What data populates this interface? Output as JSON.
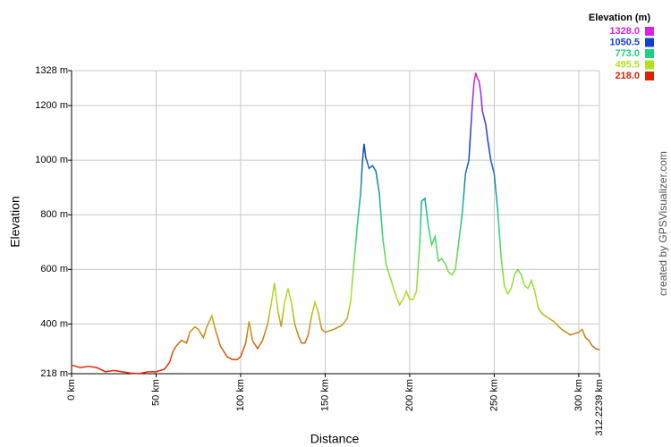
{
  "chart_data": {
    "type": "line",
    "x_label": "Distance",
    "y_label": "Elevation",
    "legend_title": "Elevation (m)",
    "credit": "created by GPSVisualizer.com",
    "color_scale": [
      {
        "value": 1328,
        "label": "1328.0",
        "color": "#dd22dd"
      },
      {
        "value": 1050.5,
        "label": "1050.5",
        "color": "#1040d0"
      },
      {
        "value": 773,
        "label": "773.0",
        "color": "#20d080"
      },
      {
        "value": 495.5,
        "label": "495.5",
        "color": "#b0e020"
      },
      {
        "value": 218,
        "label": "218.0",
        "color": "#e02000"
      }
    ],
    "xlim": [
      0,
      312.2239
    ],
    "ylim": [
      218,
      1328
    ],
    "xticks": [
      {
        "value": 0,
        "label": "0 km"
      },
      {
        "value": 50,
        "label": "50 km"
      },
      {
        "value": 100,
        "label": "100 km"
      },
      {
        "value": 150,
        "label": "150 km"
      },
      {
        "value": 200,
        "label": "200 km"
      },
      {
        "value": 250,
        "label": "250 km"
      },
      {
        "value": 300,
        "label": "300 km"
      },
      {
        "value": 312.2239,
        "label": "312.2239 km"
      }
    ],
    "yticks": [
      {
        "value": 218,
        "label": "218 m"
      },
      {
        "value": 400,
        "label": "400 m"
      },
      {
        "value": 600,
        "label": "600 m"
      },
      {
        "value": 800,
        "label": "800 m"
      },
      {
        "value": 1000,
        "label": "1000 m"
      },
      {
        "value": 1200,
        "label": "1200 m"
      },
      {
        "value": 1328,
        "label": "1328 m"
      }
    ],
    "grid": true,
    "x": [
      0,
      5,
      10,
      15,
      20,
      25,
      30,
      35,
      40,
      45,
      50,
      55,
      58,
      60,
      62,
      65,
      68,
      70,
      73,
      75,
      78,
      80,
      83,
      85,
      88,
      90,
      92,
      95,
      98,
      100,
      103,
      105,
      107,
      110,
      113,
      116,
      118,
      120,
      122,
      124,
      126,
      128,
      130,
      132,
      134,
      136,
      138,
      140,
      142,
      144,
      146,
      148,
      150,
      155,
      160,
      163,
      165,
      167,
      169,
      171,
      172,
      173,
      174,
      176,
      178,
      180,
      182,
      184,
      186,
      188,
      190,
      192,
      194,
      196,
      198,
      200,
      202,
      204,
      206,
      207,
      209,
      211,
      213,
      215,
      217,
      219,
      221,
      223,
      225,
      227,
      229,
      231,
      233,
      235,
      236,
      237,
      238,
      239,
      240,
      241,
      242,
      243,
      245,
      246,
      248,
      250,
      252,
      254,
      256,
      258,
      260,
      262,
      264,
      266,
      268,
      270,
      272,
      274,
      276,
      278,
      280,
      285,
      290,
      295,
      300,
      302,
      304,
      306,
      308,
      310,
      312.2239
    ],
    "values": [
      250,
      240,
      245,
      240,
      225,
      230,
      225,
      220,
      218,
      225,
      225,
      235,
      260,
      300,
      320,
      340,
      330,
      370,
      390,
      380,
      350,
      390,
      430,
      380,
      320,
      300,
      280,
      270,
      270,
      280,
      330,
      410,
      340,
      310,
      340,
      400,
      470,
      550,
      450,
      390,
      480,
      530,
      480,
      400,
      360,
      330,
      330,
      360,
      430,
      480,
      440,
      380,
      370,
      380,
      395,
      420,
      480,
      620,
      760,
      880,
      990,
      1060,
      1010,
      970,
      980,
      960,
      880,
      720,
      620,
      580,
      540,
      500,
      470,
      490,
      520,
      490,
      490,
      520,
      700,
      850,
      860,
      760,
      690,
      720,
      630,
      640,
      620,
      590,
      580,
      600,
      700,
      800,
      950,
      1000,
      1100,
      1200,
      1280,
      1320,
      1300,
      1290,
      1250,
      1180,
      1130,
      1080,
      1000,
      950,
      820,
      650,
      540,
      510,
      530,
      580,
      600,
      580,
      540,
      530,
      560,
      520,
      460,
      440,
      430,
      410,
      380,
      360,
      370,
      380,
      350,
      340,
      320,
      310,
      305
    ]
  }
}
